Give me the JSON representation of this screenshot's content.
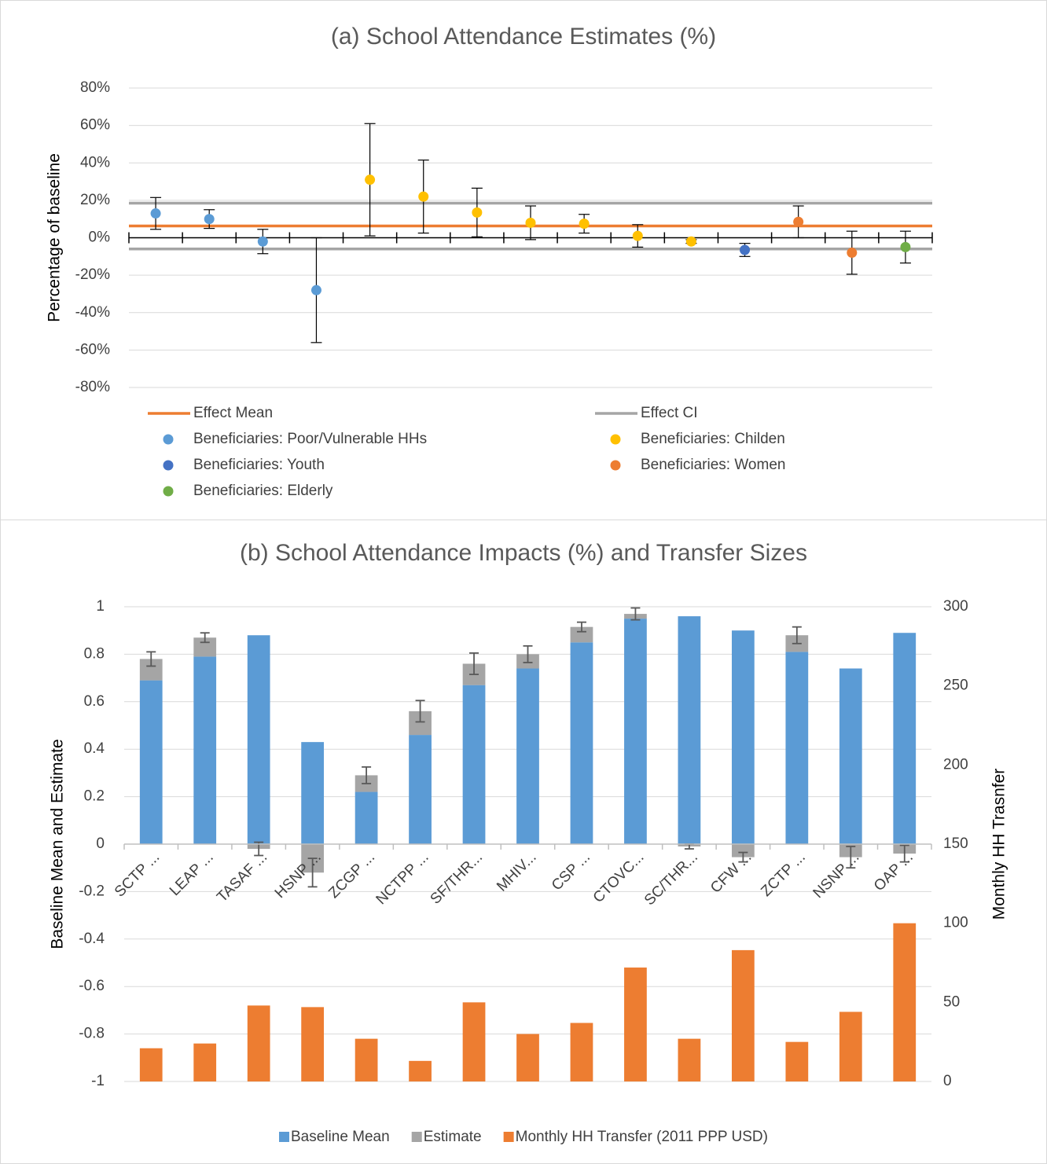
{
  "chart_data": [
    {
      "type": "scatter",
      "title": "(a) School Attendance Estimates (%)",
      "y_label": "Percentage of baseline",
      "categories": [
        null,
        null,
        null,
        null,
        null,
        null,
        null,
        null,
        null,
        null,
        null,
        null,
        null,
        null,
        null
      ],
      "ylim": [
        -80,
        80
      ],
      "yticks": [
        {
          "value": -80,
          "label": "-80%"
        },
        {
          "value": -60,
          "label": "-60%"
        },
        {
          "value": -40,
          "label": "-40%"
        },
        {
          "value": -20,
          "label": "-20%"
        },
        {
          "value": 0,
          "label": "0%"
        },
        {
          "value": 20,
          "label": "20%"
        },
        {
          "value": 40,
          "label": "40%"
        },
        {
          "value": 60,
          "label": "60%"
        },
        {
          "value": 80,
          "label": "80%"
        }
      ],
      "grid": true,
      "reference_lines": [
        {
          "name": "Effect Mean",
          "color": "#ed7d31",
          "values": [
            6.3
          ]
        },
        {
          "name": "Effect CI",
          "color": "#a5a5a5",
          "values": [
            -6,
            18.5
          ]
        }
      ],
      "series": [
        {
          "name": "Beneficiaries: Poor/Vulnerable HHs",
          "color": "#5b9bd5",
          "values": [
            13,
            10,
            -2,
            -28,
            null,
            null,
            null,
            null,
            null,
            null,
            null,
            null,
            null,
            null,
            null
          ],
          "errors": [
            8.5,
            5,
            6.5,
            28,
            null,
            null,
            null,
            null,
            null,
            null,
            null,
            null,
            null,
            null,
            null
          ]
        },
        {
          "name": "Beneficiaries: Childen",
          "color": "#ffc000",
          "values": [
            null,
            null,
            null,
            null,
            31,
            22,
            13.5,
            8,
            7.5,
            1,
            -2,
            null,
            null,
            null,
            null
          ],
          "errors": [
            null,
            null,
            null,
            null,
            30,
            19.5,
            13,
            9,
            5,
            6,
            1,
            null,
            null,
            null,
            null
          ]
        },
        {
          "name": "Beneficiaries: Youth",
          "color": "#4472c4",
          "values": [
            null,
            null,
            null,
            null,
            null,
            null,
            null,
            null,
            null,
            null,
            null,
            -6.5,
            null,
            null,
            null
          ],
          "errors": [
            null,
            null,
            null,
            null,
            null,
            null,
            null,
            null,
            null,
            null,
            null,
            3.5,
            null,
            null,
            null
          ]
        },
        {
          "name": "Beneficiaries: Women",
          "color": "#ed7d31",
          "values": [
            null,
            null,
            null,
            null,
            null,
            null,
            null,
            null,
            null,
            null,
            null,
            null,
            8.5,
            -8,
            null
          ],
          "errors": [
            null,
            null,
            null,
            null,
            null,
            null,
            null,
            null,
            null,
            null,
            null,
            null,
            8.5,
            11.5,
            null
          ]
        },
        {
          "name": "Beneficiaries: Elderly",
          "color": "#70ad47",
          "values": [
            null,
            null,
            null,
            null,
            null,
            null,
            null,
            null,
            null,
            null,
            null,
            null,
            null,
            null,
            -5
          ],
          "errors": [
            null,
            null,
            null,
            null,
            null,
            null,
            null,
            null,
            null,
            null,
            null,
            null,
            null,
            null,
            8.5
          ]
        }
      ]
    },
    {
      "type": "bar",
      "title": "(b) School Attendance Impacts (%) and Transfer Sizes",
      "y_label": "Baseline Mean and Estimate",
      "y2_label": "Monthly HH Trasnfer",
      "categories": [
        "SCTP ...",
        "LEAP ...",
        "TASAF ...",
        "HSNP ...",
        "ZCGP ...",
        "NCTPP ...",
        "SF/THR...",
        "MHIV...",
        "CSP ...",
        "CTOVC...",
        "SC/THR...",
        "CFW ...",
        "ZCTP ...",
        "NSNP ...",
        "OAP ..."
      ],
      "ylim": [
        -1,
        1
      ],
      "yticks": [
        -1,
        -0.8,
        -0.6,
        -0.4,
        -0.2,
        0,
        0.2,
        0.4,
        0.6,
        0.8,
        1
      ],
      "y2lim": [
        0,
        300
      ],
      "y2ticks": [
        0,
        50,
        100,
        150,
        200,
        250,
        300
      ],
      "grid": true,
      "legend": "bottom",
      "series": [
        {
          "name": "Baseline Mean",
          "color": "#5b9bd5",
          "values": [
            0.69,
            0.79,
            0.88,
            0.43,
            0.22,
            0.46,
            0.67,
            0.74,
            0.85,
            0.95,
            0.96,
            0.9,
            0.81,
            0.74,
            0.89
          ]
        },
        {
          "name": "Estimate",
          "color": "#a5a5a5",
          "values": [
            0.09,
            0.08,
            -0.02,
            -0.12,
            0.07,
            0.1,
            0.09,
            0.06,
            0.065,
            0.02,
            -0.01,
            -0.055,
            0.07,
            -0.055,
            -0.04
          ],
          "errors": [
            0.03,
            0.02,
            0.028,
            0.06,
            0.035,
            0.045,
            0.045,
            0.035,
            0.02,
            0.025,
            0.01,
            0.02,
            0.035,
            0.045,
            0.035
          ]
        },
        {
          "name": "Monthly HH Transfer (2011 PPP USD)",
          "color": "#ed7d31",
          "axis": "y2",
          "values": [
            21,
            24,
            48,
            47,
            27,
            13,
            50,
            30,
            37,
            72,
            27,
            83,
            25,
            44,
            100
          ]
        }
      ]
    }
  ]
}
